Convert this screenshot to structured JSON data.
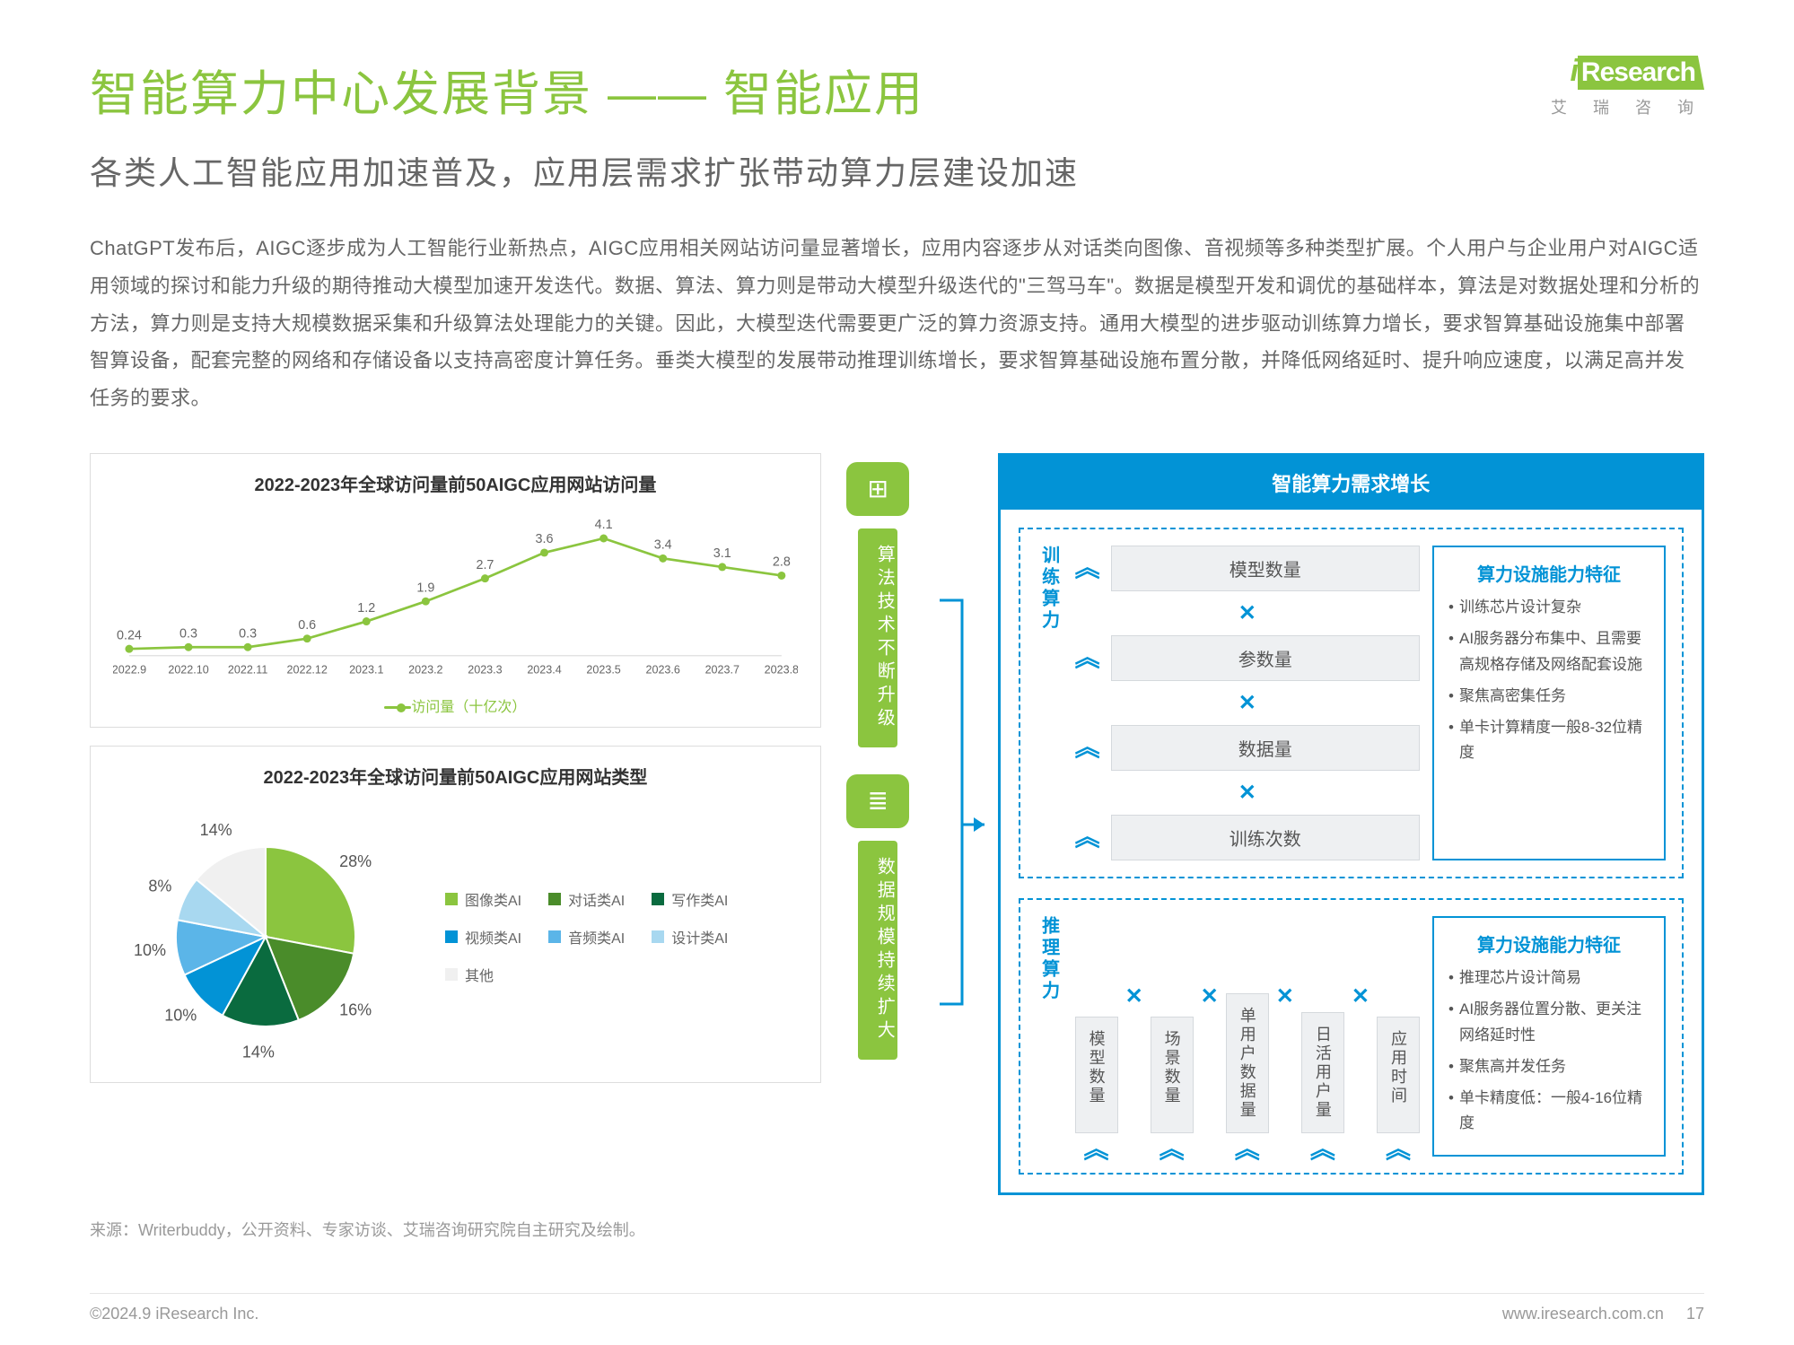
{
  "logo": {
    "main": "Research",
    "prefix": "i",
    "subtitle": "艾 瑞 咨 询"
  },
  "title": "智能算力中心发展背景 —— 智能应用",
  "subtitle": "各类人工智能应用加速普及，应用层需求扩张带动算力层建设加速",
  "body": "ChatGPT发布后，AIGC逐步成为人工智能行业新热点，AIGC应用相关网站访问量显著增长，应用内容逐步从对话类向图像、音视频等多种类型扩展。个人用户与企业用户对AIGC适用领域的探讨和能力升级的期待推动大模型加速开发迭代。数据、算法、算力则是带动大模型升级迭代的\"三驾马车\"。数据是模型开发和调优的基础样本，算法是对数据处理和分析的方法，算力则是支持大规模数据采集和升级算法处理能力的关键。因此，大模型迭代需要更广泛的算力资源支持。通用大模型的进步驱动训练算力增长，要求智算基础设施集中部署智算设备，配套完整的网络和存储设备以支持高密度计算任务。垂类大模型的发展带动推理训练增长，要求智算基础设施布置分散，并降低网络延时、提升响应速度，以满足高并发任务的要求。",
  "line_chart": {
    "title": "2022-2023年全球访问量前50AIGC应用网站访问量",
    "categories": [
      "2022.9",
      "2022.10",
      "2022.11",
      "2022.12",
      "2023.1",
      "2023.2",
      "2023.3",
      "2023.4",
      "2023.5",
      "2023.6",
      "2023.7",
      "2023.8"
    ],
    "values": [
      0.24,
      0.3,
      0.3,
      0.6,
      1.2,
      1.9,
      2.7,
      3.6,
      4.1,
      3.4,
      3.1,
      2.8
    ],
    "legend": "访问量（十亿次）",
    "ylim": [
      0,
      4.5
    ],
    "color": "#8bc53f",
    "axis_color": "#d0d0d0",
    "label_color": "#666666",
    "value_fontsize": 16,
    "axis_fontsize": 14
  },
  "pie_chart": {
    "title": "2022-2023年全球访问量前50AIGC应用网站类型",
    "slices": [
      {
        "label": "图像类AI",
        "value": 28,
        "color": "#8bc53f"
      },
      {
        "label": "对话类AI",
        "value": 16,
        "color": "#4a8c2a"
      },
      {
        "label": "写作类AI",
        "value": 14,
        "color": "#0a6b3f"
      },
      {
        "label": "视频类AI",
        "value": 10,
        "color": "#0293d6"
      },
      {
        "label": "音频类AI",
        "value": 10,
        "color": "#5bb5e8"
      },
      {
        "label": "设计类AI",
        "value": 8,
        "color": "#a8d8f0"
      },
      {
        "label": "其他",
        "value": 14,
        "color": "#f0f0f0"
      }
    ],
    "label_fontsize": 18,
    "label_color": "#555555"
  },
  "mid_labels": {
    "top_icon": "⊞",
    "top_text": "算法技术不断升级",
    "bottom_icon": "≣",
    "bottom_text": "数据规模持续扩大"
  },
  "right_panel": {
    "header": "智能算力需求增长",
    "train": {
      "side": "训练算力",
      "tags": [
        "模型数量",
        "参数量",
        "数据量",
        "训练次数"
      ],
      "attrs_title": "算力设施能力特征",
      "attrs": [
        "训练芯片设计复杂",
        "AI服务器分布集中、且需要高规格存储及网络配套设施",
        "聚焦高密集任务",
        "单卡计算精度一般8-32位精度"
      ]
    },
    "infer": {
      "side": "推理算力",
      "tags": [
        "模型数量",
        "场景数量",
        "单用户数据量",
        "日活用户量",
        "应用时间"
      ],
      "attrs_title": "算力设施能力特征",
      "attrs": [
        "推理芯片设计简易",
        "AI服务器位置分散、更关注网络延时性",
        "聚焦高并发任务",
        "单卡精度低：一般4-16位精度"
      ]
    }
  },
  "source": "来源：Writerbuddy，公开资料、专家访谈、艾瑞咨询研究院自主研究及绘制。",
  "footer": {
    "left": "©2024.9 iResearch Inc.",
    "right_url": "www.iresearch.com.cn",
    "page": "17"
  },
  "colors": {
    "brand_green": "#8bc53f",
    "brand_blue": "#0293d6",
    "text_grey": "#666666",
    "light_grey": "#eef0f2"
  }
}
